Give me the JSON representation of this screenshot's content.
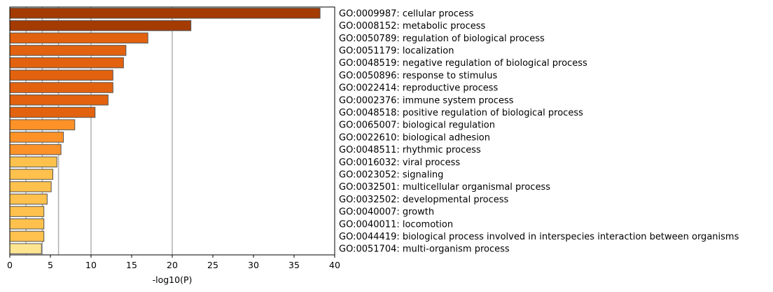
{
  "chart_data": {
    "type": "bar",
    "orientation": "horizontal",
    "categories": [
      "GO:0009987: cellular process",
      "GO:0008152: metabolic process",
      "GO:0050789: regulation of biological process",
      "GO:0051179: localization",
      "GO:0048519: negative regulation of biological process",
      "GO:0050896: response to stimulus",
      "GO:0022414: reproductive process",
      "GO:0002376: immune system process",
      "GO:0048518: positive regulation of biological process",
      "GO:0065007: biological regulation",
      "GO:0022610: biological adhesion",
      "GO:0048511: rhythmic process",
      "GO:0016032: viral process",
      "GO:0023052: signaling",
      "GO:0032501: multicellular organismal process",
      "GO:0032502: developmental process",
      "GO:0040007: growth",
      "GO:0040011: locomotion",
      "GO:0044419: biological process involved in interspecies interaction between organisms",
      "GO:0051704: multi-organism process"
    ],
    "values": [
      38.2,
      22.3,
      17.0,
      14.3,
      14.0,
      12.7,
      12.7,
      12.1,
      10.5,
      8.0,
      6.6,
      6.3,
      5.8,
      5.3,
      5.1,
      4.6,
      4.2,
      4.2,
      4.2,
      3.9
    ],
    "bar_colors": [
      "#a33b03",
      "#a33b03",
      "#e2620f",
      "#e2620f",
      "#e2620f",
      "#e2620f",
      "#e2620f",
      "#e2620f",
      "#e2620f",
      "#fd9228",
      "#fd9228",
      "#fd9228",
      "#fec14d",
      "#fec14d",
      "#fec14d",
      "#fec14d",
      "#fec14d",
      "#fec14d",
      "#fec14d",
      "#fee590"
    ],
    "bar_edge_color": "#555555",
    "xlabel": "-log10(P)",
    "xlim": [
      0,
      40
    ],
    "xticks": [
      "0",
      "5",
      "10",
      "15",
      "20",
      "25",
      "30",
      "35",
      "40"
    ],
    "xtick_values": [
      0,
      5,
      10,
      15,
      20,
      25,
      30,
      35,
      40
    ],
    "reference_lines": [
      2,
      4,
      6,
      10,
      20
    ],
    "reference_line_color": "#b0b0b0",
    "grid": false,
    "legend": "none"
  }
}
